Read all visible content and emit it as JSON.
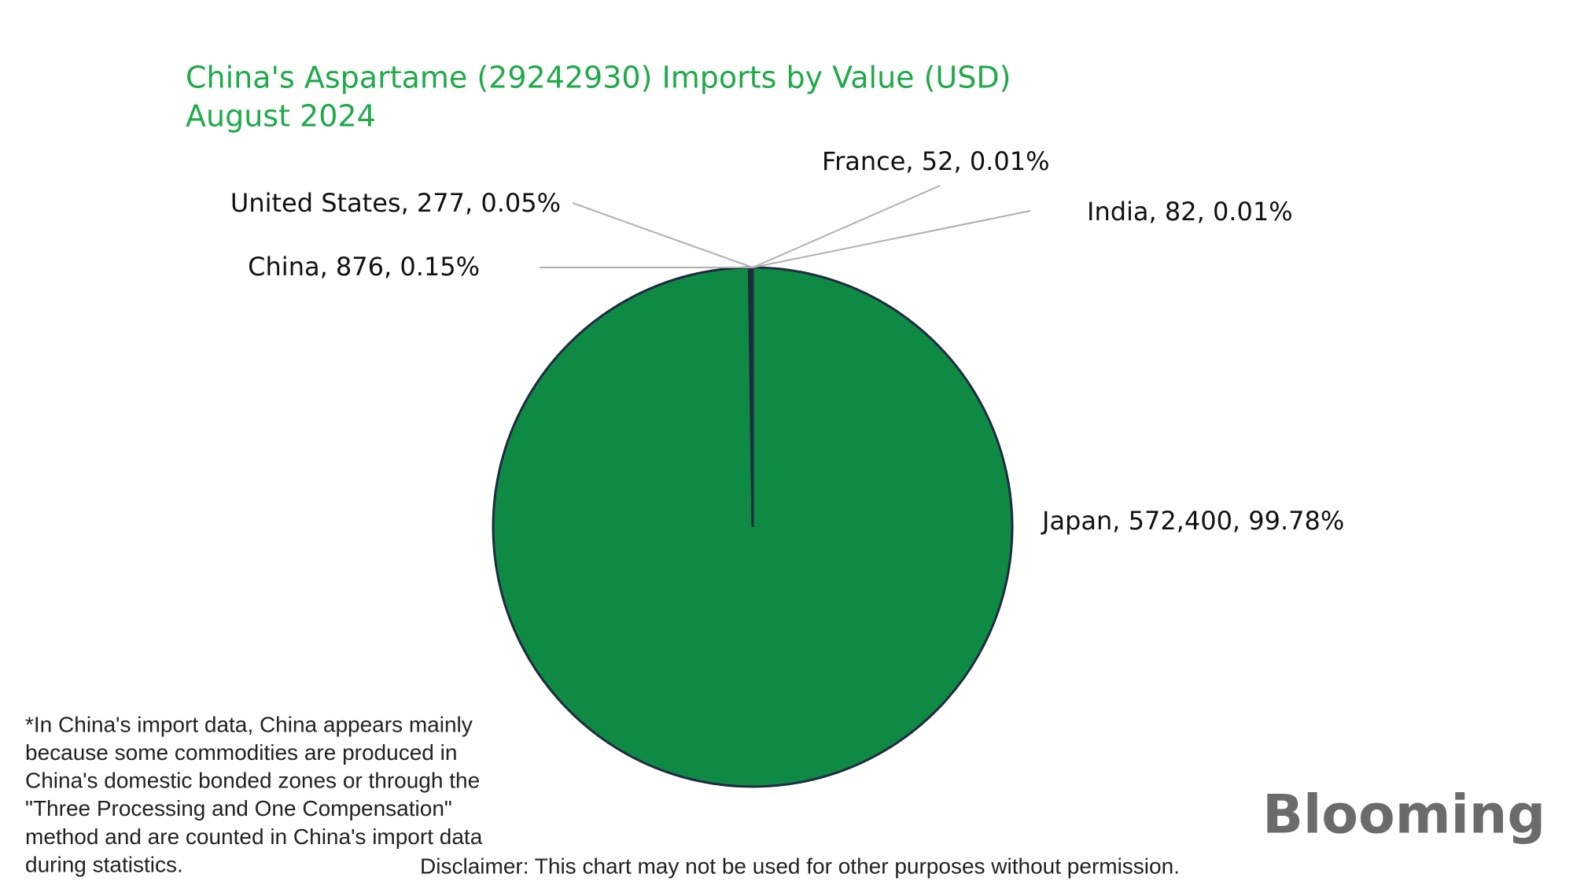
{
  "chart_data": {
    "type": "pie",
    "title": [
      "China's Aspartame (29242930) Imports by Value (USD)",
      "August 2024"
    ],
    "categories": [
      "Japan",
      "China",
      "United States",
      "India",
      "France"
    ],
    "values": [
      572400,
      876,
      277,
      82,
      52
    ],
    "value_labels": [
      ", 572,400, 99.78%",
      ", 876, 0.15%",
      ", 277, 0.05%",
      ", 82, 0.01%",
      ", 52, 0.01%"
    ],
    "colors": [
      "#0f8a44",
      "#1e2b40",
      "#1e2b40",
      "#1e2b40",
      "#1e2b40"
    ],
    "footnote": [
      "*In China's import data, China appears mainly",
      "because some commodities are produced in",
      "China's domestic bonded zones or through the",
      "\"Three Processing and One Compensation\"",
      "method and are counted in China's import data",
      "during statistics."
    ],
    "disclaimer": "Disclaimer: This chart may not be used for other purposes without permission.",
    "logo": "Blooming"
  }
}
